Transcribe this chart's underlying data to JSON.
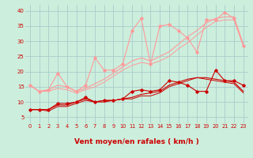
{
  "xlabel": "Vent moyen/en rafales ( km/h )",
  "bg_color": "#cceedd",
  "grid_color": "#aacccc",
  "x": [
    0,
    1,
    2,
    3,
    4,
    5,
    6,
    7,
    8,
    9,
    10,
    11,
    12,
    13,
    14,
    15,
    16,
    17,
    18,
    19,
    20,
    21,
    22,
    23
  ],
  "series": [
    {
      "y": [
        7.5,
        7.5,
        7.5,
        9.5,
        9.5,
        10.0,
        11.5,
        10.0,
        10.5,
        10.5,
        11.0,
        13.5,
        14.0,
        13.5,
        14.0,
        17.0,
        16.5,
        15.5,
        13.5,
        13.5,
        20.5,
        17.0,
        17.0,
        15.5
      ],
      "color": "#cc0000",
      "lw": 0.8,
      "marker": "D",
      "ms": 1.8,
      "zorder": 5
    },
    {
      "y": [
        7.5,
        7.5,
        7.5,
        9.0,
        9.0,
        10.0,
        11.0,
        10.0,
        10.5,
        10.5,
        11.0,
        11.5,
        12.5,
        13.0,
        13.5,
        15.5,
        16.5,
        17.5,
        18.0,
        18.0,
        17.5,
        17.0,
        16.5,
        13.5
      ],
      "color": "#cc0000",
      "lw": 0.8,
      "marker": null,
      "ms": 0,
      "zorder": 4
    },
    {
      "y": [
        7.5,
        7.5,
        7.0,
        8.5,
        8.5,
        9.5,
        10.5,
        10.0,
        10.0,
        10.5,
        11.0,
        11.0,
        12.0,
        12.0,
        13.0,
        15.0,
        16.0,
        17.0,
        18.0,
        17.5,
        17.0,
        16.5,
        16.0,
        13.0
      ],
      "color": "#cc0000",
      "lw": 0.7,
      "marker": null,
      "ms": 0,
      "zorder": 3
    },
    {
      "y": [
        15.5,
        13.5,
        14.0,
        19.5,
        15.0,
        13.5,
        15.5,
        24.5,
        20.5,
        20.5,
        22.5,
        33.5,
        37.5,
        22.5,
        35.0,
        35.5,
        33.5,
        31.0,
        26.5,
        37.0,
        37.0,
        39.5,
        37.5,
        28.5
      ],
      "color": "#ff9999",
      "lw": 0.8,
      "marker": "D",
      "ms": 1.8,
      "zorder": 5
    },
    {
      "y": [
        15.5,
        13.5,
        14.0,
        15.5,
        15.0,
        13.5,
        14.5,
        16.0,
        17.5,
        19.5,
        21.5,
        23.5,
        24.5,
        23.5,
        25.0,
        26.5,
        29.0,
        31.5,
        33.5,
        36.0,
        37.5,
        38.0,
        38.0,
        29.0
      ],
      "color": "#ff9999",
      "lw": 0.8,
      "marker": null,
      "ms": 0,
      "zorder": 3
    },
    {
      "y": [
        15.5,
        13.5,
        13.5,
        14.5,
        14.0,
        13.0,
        14.0,
        15.0,
        16.5,
        18.5,
        20.5,
        22.0,
        23.0,
        22.5,
        23.5,
        25.0,
        27.5,
        29.5,
        32.0,
        34.5,
        36.5,
        37.0,
        37.0,
        28.5
      ],
      "color": "#ff9999",
      "lw": 0.7,
      "marker": null,
      "ms": 0,
      "zorder": 2
    }
  ],
  "ylim": [
    3,
    42
  ],
  "xlim": [
    -0.5,
    23.5
  ],
  "yticks": [
    5,
    10,
    15,
    20,
    25,
    30,
    35,
    40
  ],
  "xticks": [
    0,
    1,
    2,
    3,
    4,
    5,
    6,
    7,
    8,
    9,
    10,
    11,
    12,
    13,
    14,
    15,
    16,
    17,
    18,
    19,
    20,
    21,
    22,
    23
  ],
  "tick_color": "#cc0000",
  "tick_fontsize": 4.8,
  "xlabel_fontsize": 6.5,
  "xlabel_color": "#cc0000",
  "ytick_fontsize": 5.0,
  "arrow_char": "↗"
}
